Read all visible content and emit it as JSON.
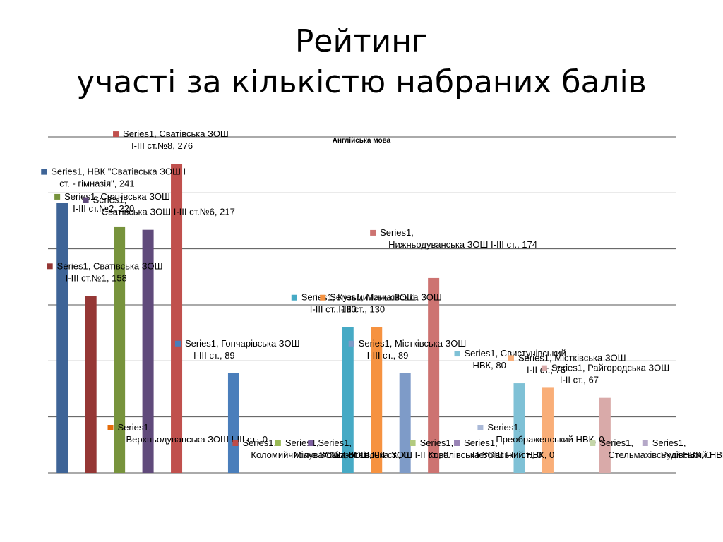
{
  "slide": {
    "title_line1": "Рейтинг",
    "title_line2": "участі  за кількістю набраних балів"
  },
  "chart_data": {
    "type": "bar",
    "title": "Англійська мова",
    "ylim": [
      0,
      300
    ],
    "grid": true,
    "legend": "none",
    "series_name": "Series1",
    "points": [
      {
        "category": "НВК \"Сватівська ЗОШ І ст. - гімназія\"",
        "value": 241,
        "color": "#3e6497"
      },
      {
        "category": "Сватівська ЗОШ І-ІІІ ст.№1",
        "value": 158,
        "color": "#953735"
      },
      {
        "category": "Сватівська ЗОШ І-ІІІ ст.№2",
        "value": 220,
        "color": "#77933c"
      },
      {
        "category": "Сватівська ЗОШ І-ІІІ ст.№6",
        "value": 217,
        "color": "#604a7b"
      },
      {
        "category": "Сватівська ЗОШ І-ІІІ ст.№8",
        "value": 276,
        "color": "#c0504d"
      },
      {
        "category": "Верхньодуванська ЗОШ І-ІІІ ст.",
        "value": 0,
        "color": "#e46c0a"
      },
      {
        "category": "Гончарівська ЗОШ І-ІІІ ст.",
        "value": 89,
        "color": "#4a7ebb"
      },
      {
        "category": "Коломийчиська ЗОШ І-ІІІ ст.",
        "value": 0,
        "color": "#be4b48"
      },
      {
        "category": "Мілуватська ЗОШ І-ІІІ ст.",
        "value": 0,
        "color": "#98b954"
      },
      {
        "category": "Оборотнівська ЗОШ І-ІІ ст.",
        "value": 0,
        "color": "#7d60a0"
      },
      {
        "category": "Кузьминська ЗОШ І-ІІІ ст.",
        "value": 130,
        "color": "#46aac5"
      },
      {
        "category": "Маньківська ЗОШ І-ІІІ ст.",
        "value": 130,
        "color": "#f69240"
      },
      {
        "category": "Містківська ЗОШ І-ІІІ ст.",
        "value": 89,
        "color": "#7e9bc8"
      },
      {
        "category": "Нижньодуванська ЗОШ І-ІІІ ст.",
        "value": 174,
        "color": "#cd7371"
      },
      {
        "category": "Ковалівська ЗОШ І-ІІІ ст.",
        "value": 0,
        "color": "#b2ca7f"
      },
      {
        "category": "Петрівський НВК",
        "value": 0,
        "color": "#9983b5"
      },
      {
        "category": "Свистунівський НВК",
        "value": 80,
        "color": "#7fc1d6"
      },
      {
        "category": "Містківська ЗОШ І-ІІ ст.",
        "value": 76,
        "color": "#f9ae78"
      },
      {
        "category": "Преображенський НВК",
        "value": 0,
        "color": "#aab9d8"
      },
      {
        "category": "Райгородська ЗОШ І-ІІ ст.",
        "value": 67,
        "color": "#d9aaa9"
      },
      {
        "category": "Стельмахівський НВК",
        "value": 0,
        "color": "#c5d6a9"
      },
      {
        "category": "Рудівський НВК",
        "value": 0,
        "color": "#b5a8c8"
      }
    ]
  }
}
